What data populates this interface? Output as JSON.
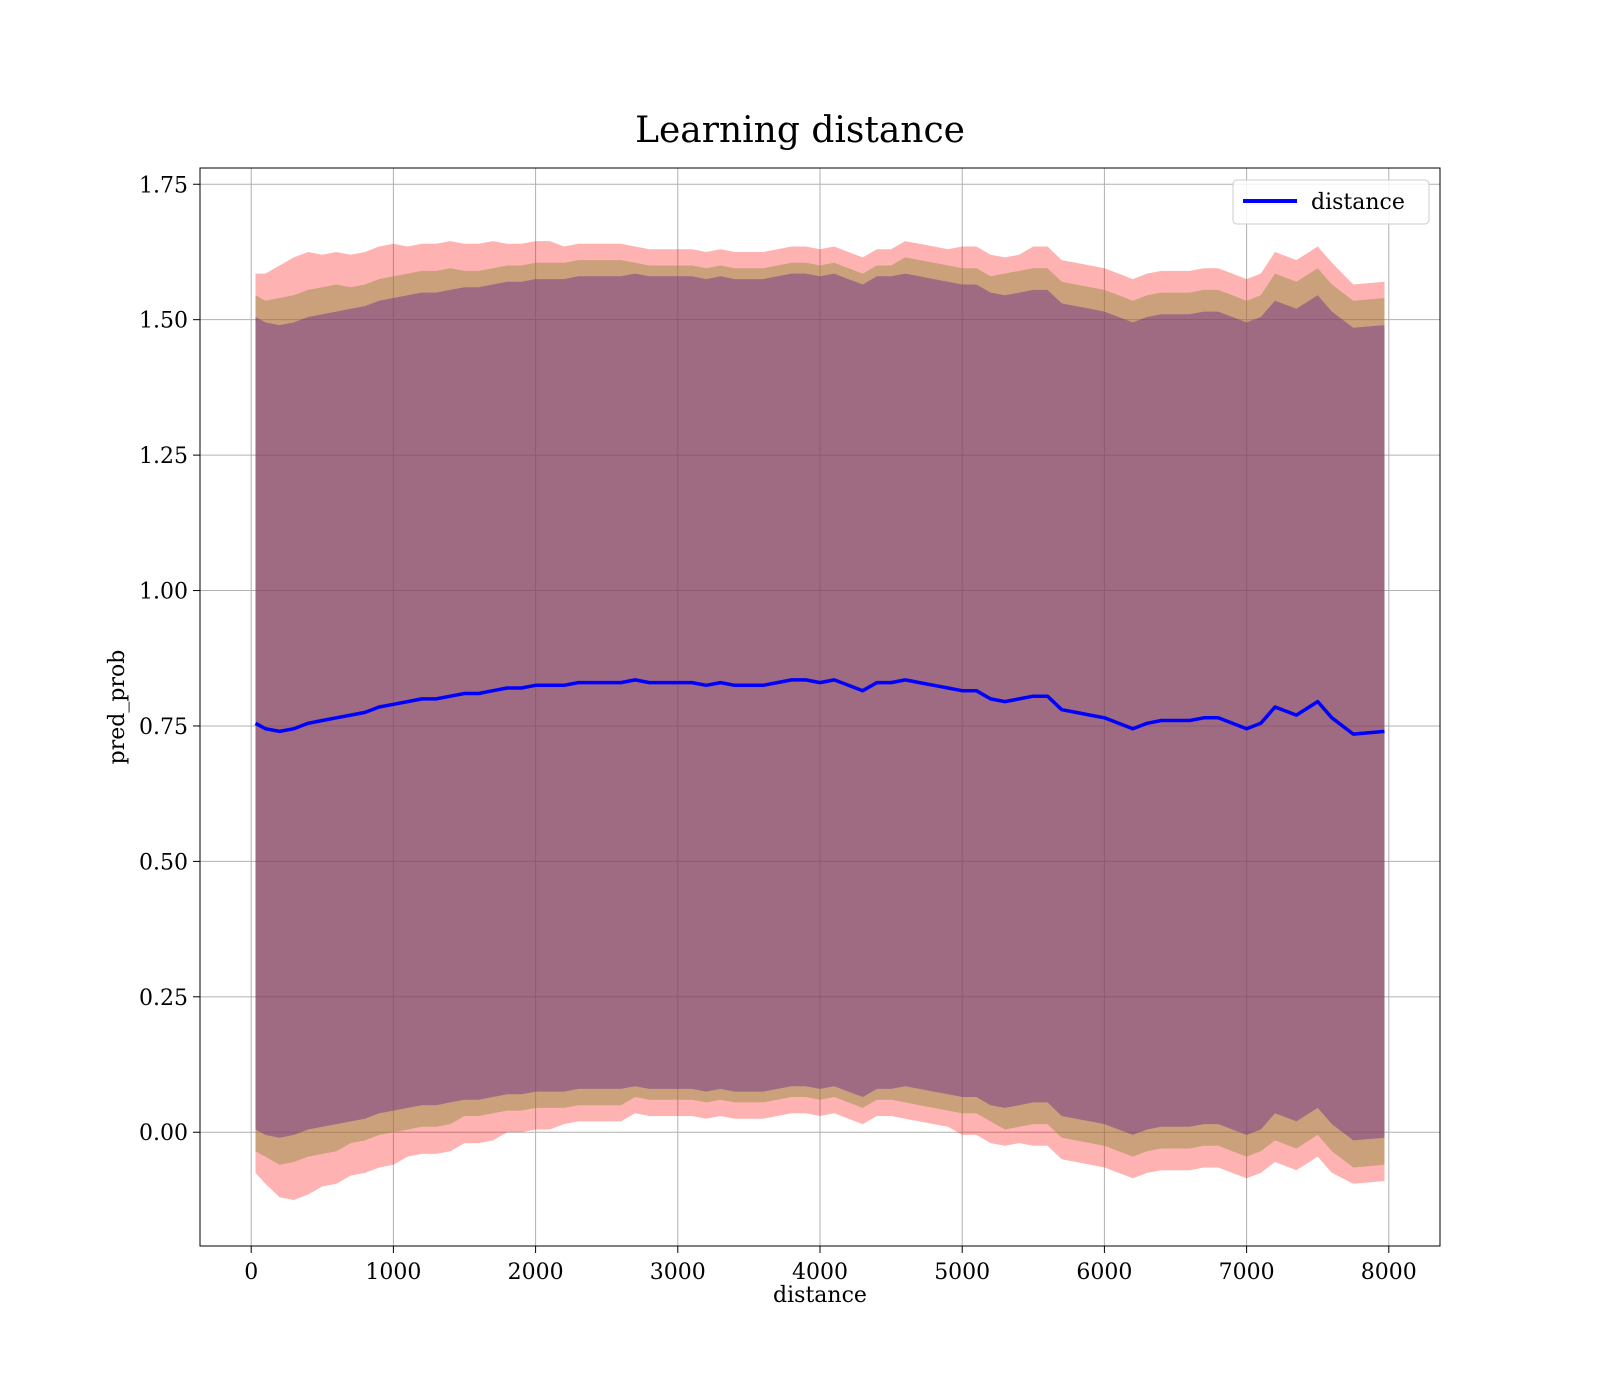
{
  "chart_data": {
    "type": "line",
    "title": "Learning distance",
    "xlabel": "distance",
    "ylabel": "pred_prob",
    "xlim": [
      -360,
      8360
    ],
    "ylim": [
      -0.21,
      1.78
    ],
    "xticks": [
      0,
      1000,
      2000,
      3000,
      4000,
      5000,
      6000,
      7000,
      8000
    ],
    "xtick_labels": [
      "0",
      "1000",
      "2000",
      "3000",
      "4000",
      "5000",
      "6000",
      "7000",
      "8000"
    ],
    "yticks": [
      0.0,
      0.25,
      0.5,
      0.75,
      1.0,
      1.25,
      1.5,
      1.75
    ],
    "ytick_labels": [
      "0.00",
      "0.25",
      "0.50",
      "0.75",
      "1.00",
      "1.25",
      "1.50",
      "1.75"
    ],
    "grid": true,
    "legend": {
      "position": "top-right",
      "entries": [
        "distance"
      ]
    },
    "colors": {
      "line": "#0000ff",
      "outer_band": "#ff0000",
      "mid_band": "#8b8b3a",
      "inner_band": "#6a2a8a"
    },
    "series": [
      {
        "name": "distance",
        "x": [
          30,
          100,
          200,
          300,
          400,
          500,
          600,
          700,
          800,
          900,
          1000,
          1100,
          1200,
          1300,
          1400,
          1500,
          1600,
          1700,
          1800,
          1900,
          2000,
          2100,
          2200,
          2300,
          2400,
          2500,
          2600,
          2700,
          2800,
          2900,
          3000,
          3100,
          3200,
          3300,
          3400,
          3500,
          3600,
          3700,
          3800,
          3900,
          4000,
          4100,
          4200,
          4300,
          4400,
          4500,
          4600,
          4700,
          4800,
          4900,
          5000,
          5100,
          5200,
          5300,
          5400,
          5500,
          5600,
          5700,
          5800,
          5900,
          6000,
          6100,
          6200,
          6300,
          6400,
          6500,
          6600,
          6700,
          6800,
          6900,
          7000,
          7100,
          7200,
          7350,
          7500,
          7600,
          7750,
          7970
        ],
        "y": [
          0.755,
          0.745,
          0.74,
          0.745,
          0.755,
          0.76,
          0.765,
          0.77,
          0.775,
          0.785,
          0.79,
          0.795,
          0.8,
          0.8,
          0.805,
          0.81,
          0.81,
          0.815,
          0.82,
          0.82,
          0.825,
          0.825,
          0.825,
          0.83,
          0.83,
          0.83,
          0.83,
          0.835,
          0.83,
          0.83,
          0.83,
          0.83,
          0.825,
          0.83,
          0.825,
          0.825,
          0.825,
          0.83,
          0.835,
          0.835,
          0.83,
          0.835,
          0.825,
          0.815,
          0.83,
          0.83,
          0.835,
          0.83,
          0.825,
          0.82,
          0.815,
          0.815,
          0.8,
          0.795,
          0.8,
          0.805,
          0.805,
          0.78,
          0.775,
          0.77,
          0.765,
          0.755,
          0.745,
          0.755,
          0.76,
          0.76,
          0.76,
          0.765,
          0.765,
          0.755,
          0.745,
          0.755,
          0.785,
          0.77,
          0.795,
          0.765,
          0.735,
          0.74
        ],
        "band_outer_halfwidth": [
          0.83,
          0.84,
          0.86,
          0.87,
          0.87,
          0.86,
          0.86,
          0.85,
          0.85,
          0.85,
          0.85,
          0.84,
          0.84,
          0.84,
          0.84,
          0.83,
          0.83,
          0.83,
          0.82,
          0.82,
          0.82,
          0.82,
          0.81,
          0.81,
          0.81,
          0.81,
          0.81,
          0.8,
          0.8,
          0.8,
          0.8,
          0.8,
          0.8,
          0.8,
          0.8,
          0.8,
          0.8,
          0.8,
          0.8,
          0.8,
          0.8,
          0.8,
          0.8,
          0.8,
          0.8,
          0.8,
          0.81,
          0.81,
          0.81,
          0.81,
          0.82,
          0.82,
          0.82,
          0.82,
          0.82,
          0.83,
          0.83,
          0.83,
          0.83,
          0.83,
          0.83,
          0.83,
          0.83,
          0.83,
          0.83,
          0.83,
          0.83,
          0.83,
          0.83,
          0.83,
          0.83,
          0.83,
          0.84,
          0.84,
          0.84,
          0.84,
          0.83,
          0.83
        ],
        "band_mid_halfwidth": [
          0.79,
          0.79,
          0.8,
          0.8,
          0.8,
          0.8,
          0.8,
          0.79,
          0.79,
          0.79,
          0.79,
          0.79,
          0.79,
          0.79,
          0.79,
          0.78,
          0.78,
          0.78,
          0.78,
          0.78,
          0.78,
          0.78,
          0.78,
          0.78,
          0.78,
          0.78,
          0.78,
          0.77,
          0.77,
          0.77,
          0.77,
          0.77,
          0.77,
          0.77,
          0.77,
          0.77,
          0.77,
          0.77,
          0.77,
          0.77,
          0.77,
          0.77,
          0.77,
          0.77,
          0.77,
          0.77,
          0.78,
          0.78,
          0.78,
          0.78,
          0.78,
          0.78,
          0.78,
          0.79,
          0.79,
          0.79,
          0.79,
          0.79,
          0.79,
          0.79,
          0.79,
          0.79,
          0.79,
          0.79,
          0.79,
          0.79,
          0.79,
          0.79,
          0.79,
          0.79,
          0.79,
          0.79,
          0.8,
          0.8,
          0.8,
          0.8,
          0.8,
          0.8
        ],
        "band_inner_halfwidth": [
          0.75,
          0.75,
          0.75,
          0.75,
          0.75,
          0.75,
          0.75,
          0.75,
          0.75,
          0.75,
          0.75,
          0.75,
          0.75,
          0.75,
          0.75,
          0.75,
          0.75,
          0.75,
          0.75,
          0.75,
          0.75,
          0.75,
          0.75,
          0.75,
          0.75,
          0.75,
          0.75,
          0.75,
          0.75,
          0.75,
          0.75,
          0.75,
          0.75,
          0.75,
          0.75,
          0.75,
          0.75,
          0.75,
          0.75,
          0.75,
          0.75,
          0.75,
          0.75,
          0.75,
          0.75,
          0.75,
          0.75,
          0.75,
          0.75,
          0.75,
          0.75,
          0.75,
          0.75,
          0.75,
          0.75,
          0.75,
          0.75,
          0.75,
          0.75,
          0.75,
          0.75,
          0.75,
          0.75,
          0.75,
          0.75,
          0.75,
          0.75,
          0.75,
          0.75,
          0.75,
          0.75,
          0.75,
          0.75,
          0.75,
          0.75,
          0.75,
          0.75,
          0.75
        ]
      }
    ]
  }
}
